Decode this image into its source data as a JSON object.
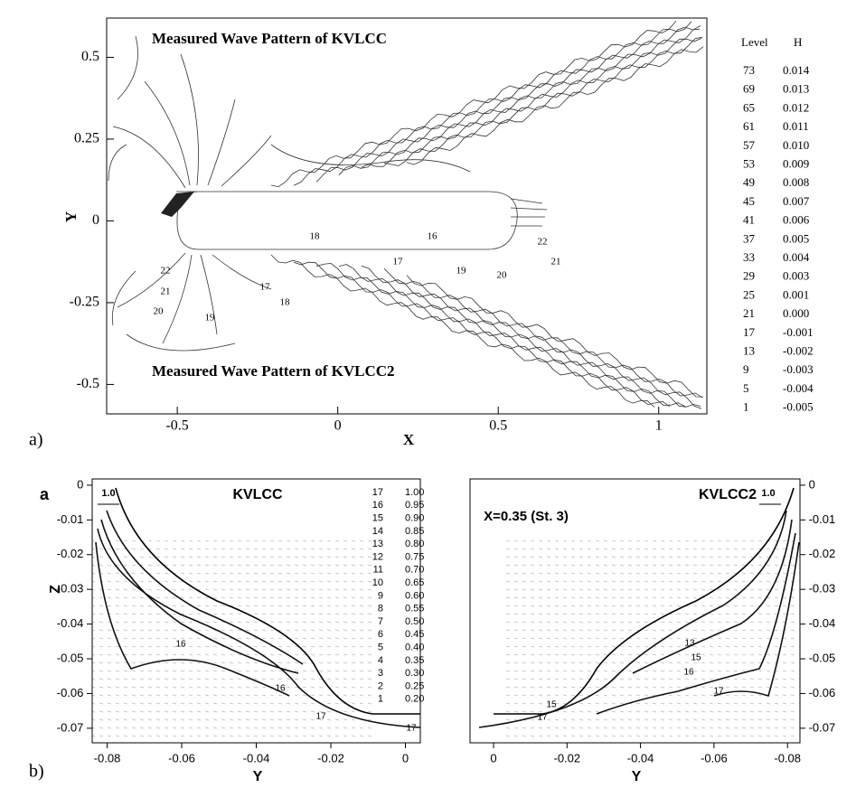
{
  "panel_a": {
    "label": "a)",
    "title_top": "Measured Wave Pattern of KVLCC",
    "title_bottom": "Measured Wave Pattern of KVLCC2",
    "xlabel": "X",
    "ylabel": "Y",
    "xlim": [
      -0.72,
      1.15
    ],
    "ylim": [
      -0.59,
      0.62
    ],
    "xticks": [
      -0.5,
      0,
      0.5,
      1
    ],
    "yticks": [
      -0.5,
      -0.25,
      0,
      0.25,
      0.5
    ],
    "contour_labels": [
      "22",
      "21",
      "20",
      "19",
      "17",
      "18",
      "18",
      "17",
      "16",
      "19",
      "20",
      "22",
      "21"
    ],
    "legend": {
      "header": [
        "Level",
        "H"
      ],
      "rows": [
        [
          "73",
          "0.014"
        ],
        [
          "69",
          "0.013"
        ],
        [
          "65",
          "0.012"
        ],
        [
          "61",
          "0.011"
        ],
        [
          "57",
          "0.010"
        ],
        [
          "53",
          "0.009"
        ],
        [
          "49",
          "0.008"
        ],
        [
          "45",
          "0.007"
        ],
        [
          "41",
          "0.006"
        ],
        [
          "37",
          "0.005"
        ],
        [
          "33",
          "0.004"
        ],
        [
          "29",
          "0.003"
        ],
        [
          "25",
          "0.001"
        ],
        [
          "21",
          "0.000"
        ],
        [
          "17",
          "-0.001"
        ],
        [
          "13",
          "-0.002"
        ],
        [
          "9",
          "-0.003"
        ],
        [
          "5",
          "-0.004"
        ],
        [
          "1",
          "-0.005"
        ]
      ]
    }
  },
  "panel_b": {
    "label": "b)",
    "letter": "a",
    "station": "X=0.35 (St. 3)",
    "ylabel": "Z",
    "ylim": [
      -0.0742,
      0.0018
    ],
    "yticks": [
      0,
      -0.01,
      -0.02,
      -0.03,
      -0.04,
      -0.05,
      -0.06,
      -0.07
    ],
    "left": {
      "title": "KVLCC",
      "arrow": "1.0",
      "xlabel": "Y",
      "xlim": [
        -0.084,
        0.004
      ],
      "xticks": [
        -0.08,
        -0.06,
        -0.04,
        -0.02,
        0
      ],
      "contour_labels": [
        "16",
        "16",
        "17",
        "17"
      ]
    },
    "right": {
      "title": "KVLCC2",
      "arrow": "1.0",
      "xlabel": "Y",
      "xlim": [
        0.0064,
        -0.0834
      ],
      "xticks": [
        0,
        -0.02,
        -0.04,
        -0.06,
        -0.08
      ],
      "contour_labels": [
        "13",
        "15",
        "16",
        "17",
        "15",
        "17"
      ]
    },
    "legend": {
      "rows": [
        [
          "17",
          "1.00"
        ],
        [
          "16",
          "0.95"
        ],
        [
          "15",
          "0.90"
        ],
        [
          "14",
          "0.85"
        ],
        [
          "13",
          "0.80"
        ],
        [
          "12",
          "0.75"
        ],
        [
          "11",
          "0.70"
        ],
        [
          "10",
          "0.65"
        ],
        [
          "9",
          "0.60"
        ],
        [
          "8",
          "0.55"
        ],
        [
          "7",
          "0.50"
        ],
        [
          "6",
          "0.45"
        ],
        [
          "5",
          "0.40"
        ],
        [
          "4",
          "0.35"
        ],
        [
          "3",
          "0.30"
        ],
        [
          "2",
          "0.25"
        ],
        [
          "1",
          "0.20"
        ]
      ]
    }
  }
}
